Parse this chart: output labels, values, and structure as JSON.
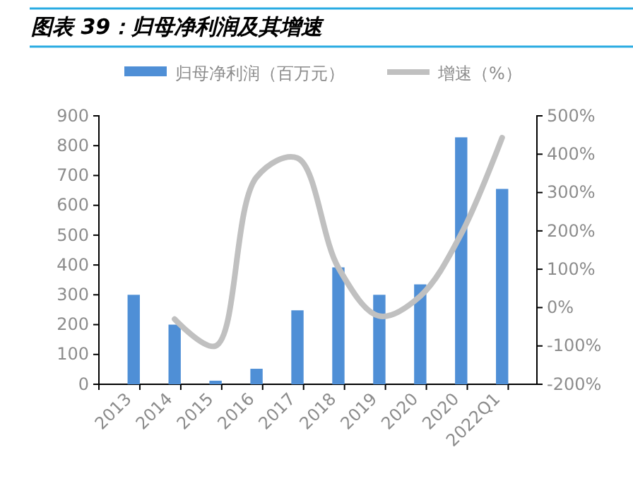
{
  "chart_data": {
    "type": "bar",
    "title": "图表 39：归母净利润及其增速",
    "categories": [
      "2013",
      "2014",
      "2015",
      "2016",
      "2017",
      "2018",
      "2019",
      "2020",
      "2020",
      "2022Q1"
    ],
    "series": [
      {
        "name": "归母净利润（百万元）",
        "color": "#4f8fd6",
        "values": [
          300,
          200,
          12,
          52,
          248,
          392,
          300,
          335,
          828,
          655
        ]
      },
      {
        "name": "增速（%）",
        "color": "#c0c0c0",
        "type": "line",
        "axis": "y2",
        "values": [
          null,
          -30,
          -100,
          340,
          390,
          104,
          -22,
          30,
          192,
          443
        ]
      }
    ],
    "ylim": [
      0,
      900
    ],
    "yticks": [
      0,
      100,
      200,
      300,
      400,
      500,
      600,
      700,
      800,
      900
    ],
    "y2lim": [
      -200,
      500
    ],
    "y2ticks": [
      {
        "value": -200,
        "label": "-200%"
      },
      {
        "value": -100,
        "label": "-100%"
      },
      {
        "value": 0,
        "label": "0%"
      },
      {
        "value": 100,
        "label": "100%"
      },
      {
        "value": 200,
        "label": "200%"
      },
      {
        "value": 300,
        "label": "300%"
      },
      {
        "value": 400,
        "label": "400%"
      },
      {
        "value": 500,
        "label": "500%"
      }
    ],
    "legend": "top",
    "grid": false,
    "marker": "none",
    "line_style": "solid"
  }
}
